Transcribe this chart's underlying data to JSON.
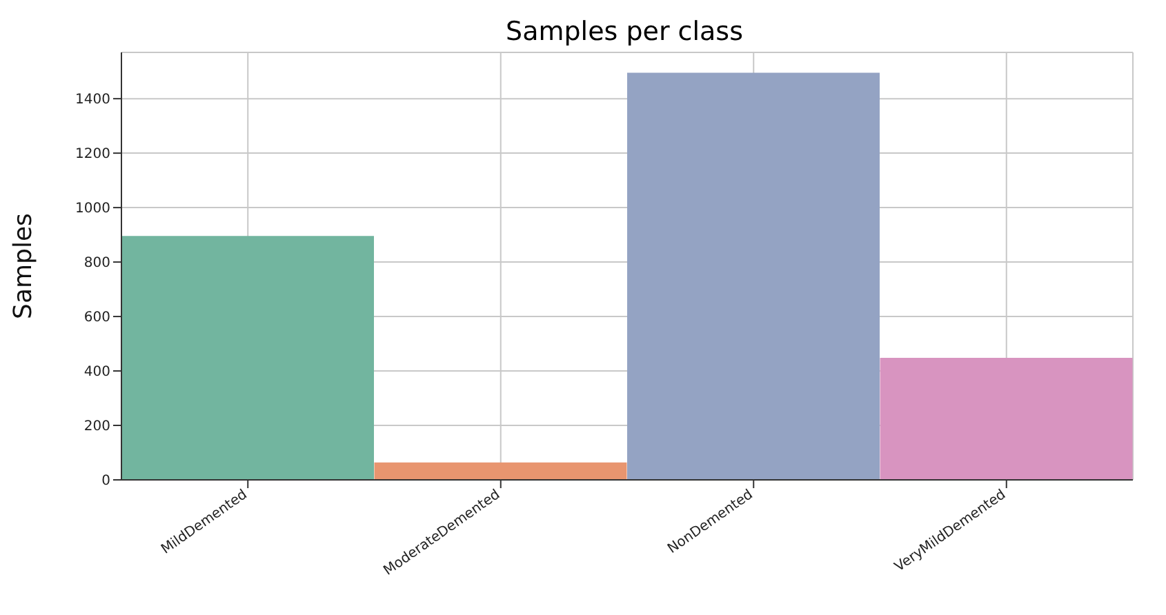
{
  "chart_data": {
    "type": "bar",
    "title": "Samples per class",
    "ylabel": "Samples",
    "categories": [
      "MildDemented",
      "ModerateDemented",
      "NonDemented",
      "VeryMildDemented"
    ],
    "values": [
      896,
      64,
      1495,
      448
    ],
    "colors": [
      "#72b59f",
      "#e8956f",
      "#94a3c3",
      "#d894c0"
    ],
    "ylim": [
      0,
      1570
    ],
    "yticks": [
      0,
      200,
      400,
      600,
      800,
      1000,
      1200,
      1400
    ],
    "grid": true
  }
}
